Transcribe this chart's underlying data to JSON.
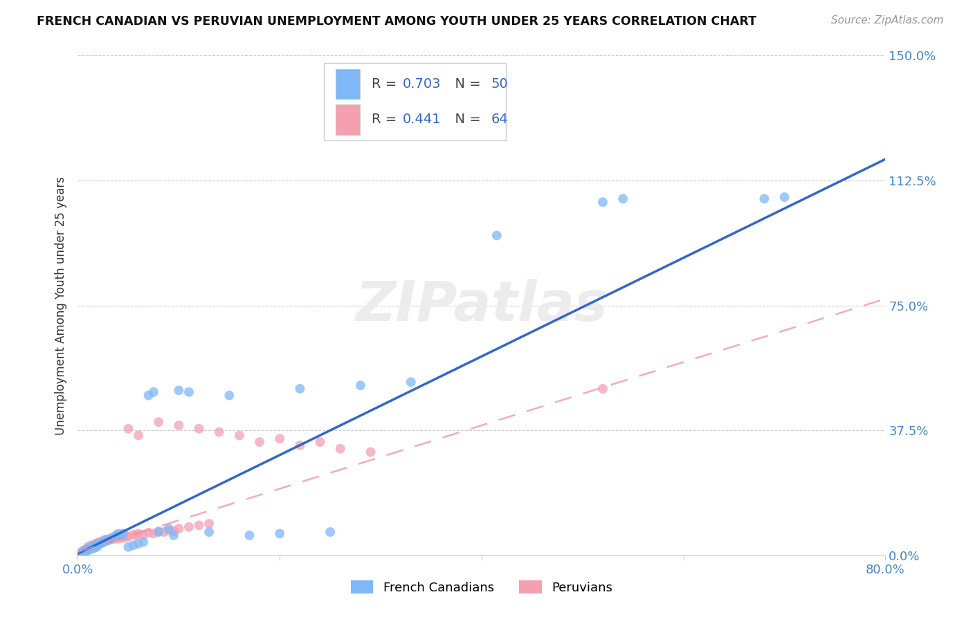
{
  "title": "FRENCH CANADIAN VS PERUVIAN UNEMPLOYMENT AMONG YOUTH UNDER 25 YEARS CORRELATION CHART",
  "source": "Source: ZipAtlas.com",
  "ylabel": "Unemployment Among Youth under 25 years",
  "xlim": [
    0.0,
    0.8
  ],
  "ylim": [
    0.0,
    1.5
  ],
  "ytick_values": [
    0.0,
    0.375,
    0.75,
    1.125,
    1.5
  ],
  "ytick_labels": [
    "0.0%",
    "37.5%",
    "75.0%",
    "112.5%",
    "150.0%"
  ],
  "xtick_positions": [
    0.0,
    0.2,
    0.4,
    0.6,
    0.8
  ],
  "xtick_labels": [
    "0.0%",
    "",
    "",
    "",
    "80.0%"
  ],
  "legend_label1": "French Canadians",
  "legend_label2": "Peruvians",
  "r1": "0.703",
  "n1": "50",
  "r2": "0.441",
  "n2": "64",
  "color1": "#7EB8F7",
  "color2": "#F4A0B0",
  "line_color1": "#3366CC",
  "line_color2": "#EE8899",
  "fc_x": [
    0.005,
    0.007,
    0.008,
    0.009,
    0.01,
    0.011,
    0.012,
    0.013,
    0.014,
    0.015,
    0.016,
    0.017,
    0.018,
    0.019,
    0.02,
    0.022,
    0.024,
    0.025,
    0.027,
    0.03,
    0.032,
    0.035,
    0.038,
    0.04,
    0.043,
    0.045,
    0.05,
    0.055,
    0.06,
    0.065,
    0.07,
    0.075,
    0.08,
    0.09,
    0.095,
    0.1,
    0.11,
    0.13,
    0.15,
    0.17,
    0.2,
    0.22,
    0.25,
    0.28,
    0.33,
    0.415,
    0.52,
    0.54,
    0.68,
    0.7
  ],
  "fc_y": [
    0.01,
    0.015,
    0.012,
    0.018,
    0.015,
    0.02,
    0.018,
    0.022,
    0.025,
    0.02,
    0.025,
    0.028,
    0.03,
    0.025,
    0.032,
    0.035,
    0.04,
    0.038,
    0.045,
    0.045,
    0.048,
    0.055,
    0.06,
    0.065,
    0.06,
    0.065,
    0.025,
    0.03,
    0.035,
    0.04,
    0.48,
    0.49,
    0.07,
    0.08,
    0.06,
    0.495,
    0.49,
    0.07,
    0.48,
    0.06,
    0.065,
    0.5,
    0.07,
    0.51,
    0.52,
    0.96,
    1.06,
    1.07,
    1.07,
    1.075
  ],
  "peru_x": [
    0.003,
    0.004,
    0.005,
    0.006,
    0.007,
    0.008,
    0.009,
    0.01,
    0.01,
    0.011,
    0.012,
    0.013,
    0.014,
    0.015,
    0.016,
    0.017,
    0.018,
    0.019,
    0.02,
    0.021,
    0.022,
    0.023,
    0.024,
    0.025,
    0.026,
    0.027,
    0.028,
    0.03,
    0.032,
    0.035,
    0.038,
    0.04,
    0.042,
    0.045,
    0.048,
    0.05,
    0.055,
    0.058,
    0.06,
    0.065,
    0.07,
    0.075,
    0.08,
    0.085,
    0.09,
    0.095,
    0.1,
    0.11,
    0.12,
    0.13,
    0.05,
    0.06,
    0.08,
    0.1,
    0.12,
    0.14,
    0.16,
    0.18,
    0.2,
    0.22,
    0.24,
    0.26,
    0.29,
    0.52
  ],
  "peru_y": [
    0.008,
    0.01,
    0.012,
    0.015,
    0.012,
    0.018,
    0.015,
    0.02,
    0.025,
    0.022,
    0.028,
    0.025,
    0.03,
    0.028,
    0.032,
    0.03,
    0.035,
    0.032,
    0.038,
    0.035,
    0.04,
    0.038,
    0.042,
    0.04,
    0.045,
    0.042,
    0.048,
    0.045,
    0.05,
    0.048,
    0.052,
    0.05,
    0.055,
    0.052,
    0.058,
    0.056,
    0.062,
    0.06,
    0.065,
    0.062,
    0.068,
    0.065,
    0.072,
    0.07,
    0.075,
    0.072,
    0.08,
    0.085,
    0.09,
    0.095,
    0.38,
    0.36,
    0.4,
    0.39,
    0.38,
    0.37,
    0.36,
    0.34,
    0.35,
    0.33,
    0.34,
    0.32,
    0.31,
    0.5
  ],
  "fc_slope": 1.48,
  "fc_intercept": 0.005,
  "peru_slope": 0.95,
  "peru_intercept": 0.01
}
